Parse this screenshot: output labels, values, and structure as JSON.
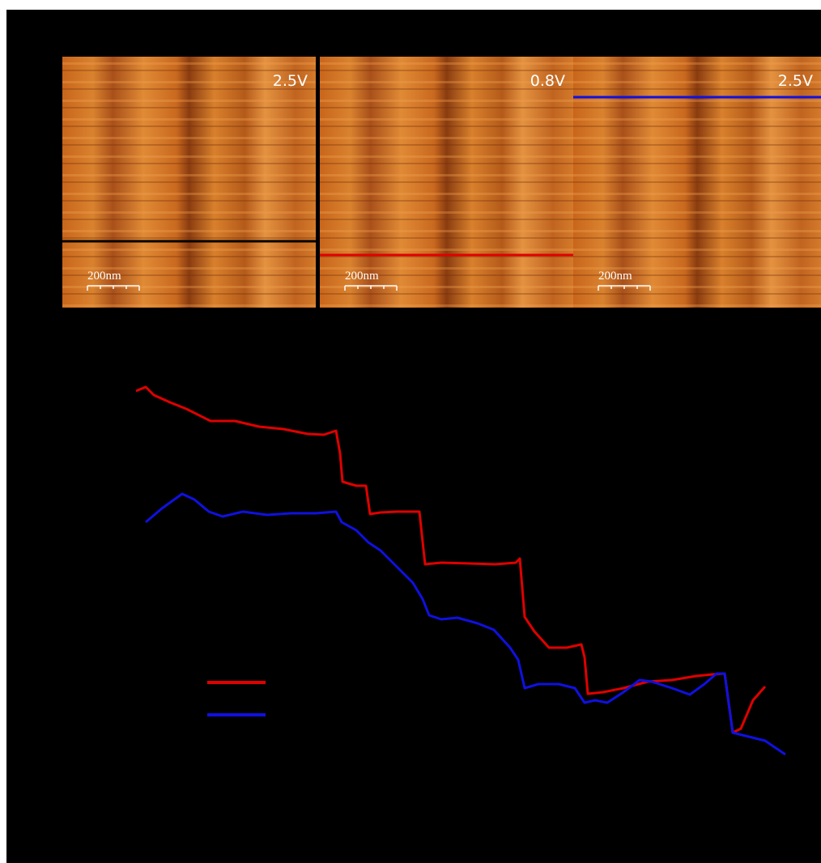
{
  "panels": [
    {
      "label": "2.5V",
      "scale_bar": "200nm",
      "line_color": "#000000"
    },
    {
      "label": "0.8V",
      "scale_bar": "200nm",
      "line_color": "#e00000"
    },
    {
      "label": "2.5V",
      "scale_bar": "200nm",
      "line_color": "#1010e0"
    }
  ],
  "chart_data": {
    "type": "line",
    "xlim": [
      0,
      1014
    ],
    "ylim": [
      40,
      560
    ],
    "series": [
      {
        "color": "#e00000",
        "x": [
          168,
          180,
          190,
          210,
          230,
          260,
          290,
          320,
          350,
          380,
          400,
          415,
          420,
          423,
          440,
          452,
          457,
          470,
          490,
          518,
          525,
          545,
          580,
          612,
          637,
          642,
          648,
          660,
          678,
          700,
          718,
          722,
          726,
          745,
          770,
          800,
          830,
          860,
          880,
          895,
          905,
          915,
          930,
          945
        ],
        "values": [
          517,
          522,
          512,
          503,
          495,
          480,
          480,
          473,
          470,
          464,
          463,
          468,
          440,
          405,
          400,
          400,
          365,
          367,
          368,
          368,
          303,
          305,
          304,
          303,
          305,
          310,
          238,
          220,
          200,
          200,
          204,
          188,
          143,
          145,
          150,
          158,
          160,
          165,
          167,
          168,
          95,
          100,
          135,
          152
        ]
      },
      {
        "color": "#1010e0",
        "x": [
          180,
          200,
          225,
          240,
          258,
          275,
          300,
          330,
          360,
          390,
          415,
          422,
          440,
          455,
          470,
          490,
          510,
          522,
          530,
          545,
          565,
          590,
          610,
          630,
          640,
          648,
          665,
          690,
          710,
          722,
          735,
          750,
          770,
          790,
          805,
          830,
          852,
          870,
          885,
          895,
          905,
          925,
          945,
          970
        ],
        "values": [
          355,
          372,
          390,
          383,
          368,
          362,
          368,
          364,
          366,
          366,
          368,
          355,
          345,
          330,
          320,
          300,
          280,
          260,
          240,
          235,
          237,
          230,
          222,
          200,
          185,
          150,
          155,
          155,
          150,
          132,
          135,
          132,
          145,
          160,
          158,
          150,
          142,
          155,
          168,
          168,
          95,
          90,
          85,
          68
        ]
      }
    ]
  }
}
